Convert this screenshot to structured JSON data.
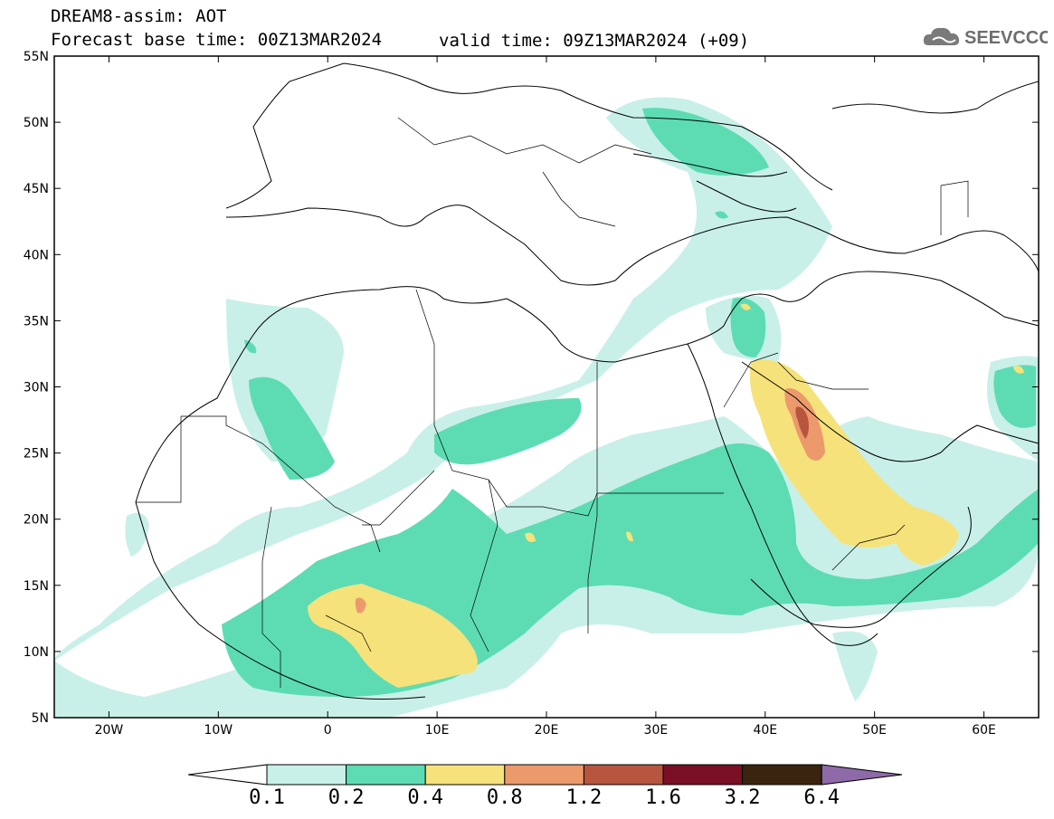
{
  "header": {
    "title": "DREAM8-assim: AOT",
    "base_time": "Forecast base time: 00Z13MAR2024",
    "valid_time": "valid time: 09Z13MAR2024 (+09)"
  },
  "logo": {
    "text": "SEEVCCC",
    "icon": "cloud-icon"
  },
  "map": {
    "lon_range": [
      -25,
      65
    ],
    "lat_range": [
      5,
      55
    ],
    "lat_ticks": [
      "5N",
      "10N",
      "15N",
      "20N",
      "25N",
      "30N",
      "35N",
      "40N",
      "45N",
      "50N",
      "55N"
    ],
    "lon_ticks": [
      "20W",
      "10W",
      "0",
      "10E",
      "20E",
      "30E",
      "40E",
      "50E",
      "60E"
    ],
    "lat_tick_values": [
      5,
      10,
      15,
      20,
      25,
      30,
      35,
      40,
      45,
      50,
      55
    ],
    "lon_tick_values": [
      -20,
      -10,
      0,
      10,
      20,
      30,
      40,
      50,
      60
    ]
  },
  "colorbar": {
    "labels": [
      "0.1",
      "0.2",
      "0.4",
      "0.8",
      "1.2",
      "1.6",
      "3.2",
      "6.4"
    ],
    "colors": [
      "#c8f0e8",
      "#5ddcb4",
      "#f6e27a",
      "#ec9a6c",
      "#b8553f",
      "#7a0f25",
      "#3a2410"
    ],
    "under_color": "#ffffff",
    "over_color": "#8e6aa8"
  },
  "colors": {
    "c1": "#c8f0e8",
    "c2": "#5ddcb4",
    "c3": "#f6e27a",
    "c4": "#ec9a6c",
    "c5": "#b8553f",
    "coast": "#000000"
  }
}
